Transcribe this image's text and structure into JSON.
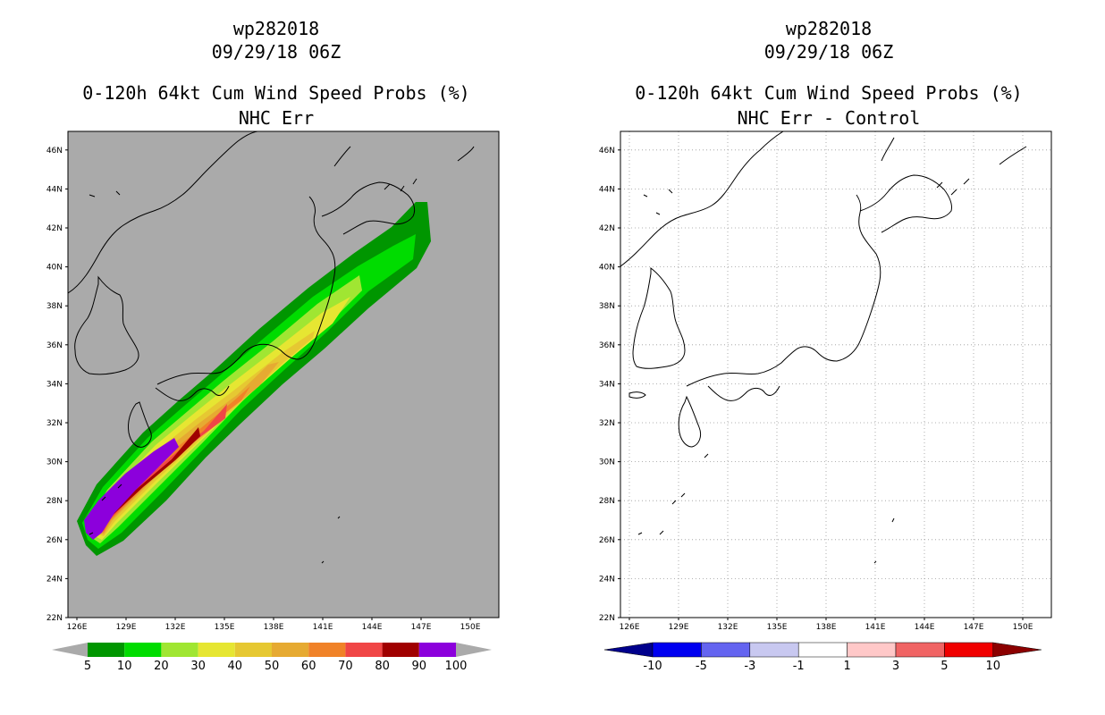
{
  "left_panel": {
    "storm_id": "wp282018",
    "datetime": "09/29/18 06Z",
    "product": "0-120h 64kt Cum Wind Speed Probs (%)",
    "subtitle": "NHC Err",
    "colorbar_labels": [
      "5",
      "10",
      "20",
      "30",
      "40",
      "50",
      "60",
      "70",
      "80",
      "90",
      "100"
    ],
    "colors": [
      "#009600",
      "#00dc00",
      "#a0e632",
      "#e6e632",
      "#e6c832",
      "#e6aa32",
      "#f08228",
      "#f04646",
      "#a00000",
      "#8c00dc"
    ]
  },
  "right_panel": {
    "storm_id": "wp282018",
    "datetime": "09/29/18 06Z",
    "product": "0-120h 64kt Cum Wind Speed Probs (%)",
    "subtitle": "NHC Err - Control",
    "colorbar_labels": [
      "-10",
      "-5",
      "-3",
      "-1",
      "1",
      "3",
      "5",
      "10"
    ],
    "colors": [
      "#00008c",
      "#0000f0",
      "#6464f0",
      "#c8c8f0",
      "#ffffff",
      "#ffc8c8",
      "#f06464",
      "#f00000",
      "#8c0000"
    ]
  },
  "axes": {
    "lat_labels": [
      "22N",
      "24N",
      "26N",
      "28N",
      "30N",
      "32N",
      "34N",
      "36N",
      "38N",
      "40N",
      "42N",
      "44N",
      "46N"
    ],
    "lon_labels": [
      "126E",
      "129E",
      "132E",
      "135E",
      "138E",
      "141E",
      "144E",
      "147E",
      "150E"
    ]
  }
}
